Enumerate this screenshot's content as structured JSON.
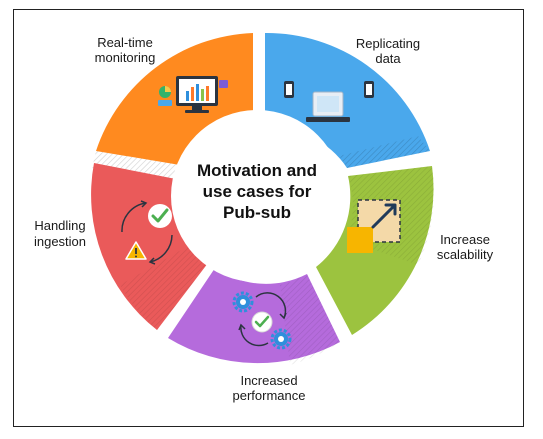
{
  "center": {
    "line1": "Motivation and",
    "line2": "use cases for",
    "line3": "Pub-sub"
  },
  "segments": [
    {
      "id": "realtime",
      "line1": "Real-time",
      "line2": "monitoring",
      "color": "#ff8a1f",
      "icon": "monitor-dashboard-icon"
    },
    {
      "id": "replicating",
      "line1": "Replicating",
      "line2": "data",
      "color": "#4aa8ec",
      "icon": "devices-sync-icon"
    },
    {
      "id": "scalability",
      "line1": "Increase",
      "line2": "scalability",
      "color": "#9cc33f",
      "icon": "scale-up-arrow-icon"
    },
    {
      "id": "performance",
      "line1": "Increased",
      "line2": "performance",
      "color": "#b56bdc",
      "icon": "gears-check-icon"
    },
    {
      "id": "ingestion",
      "line1": "Handling",
      "line2": "ingestion",
      "color": "#ea5a5a",
      "icon": "cycle-warning-check-icon"
    }
  ]
}
